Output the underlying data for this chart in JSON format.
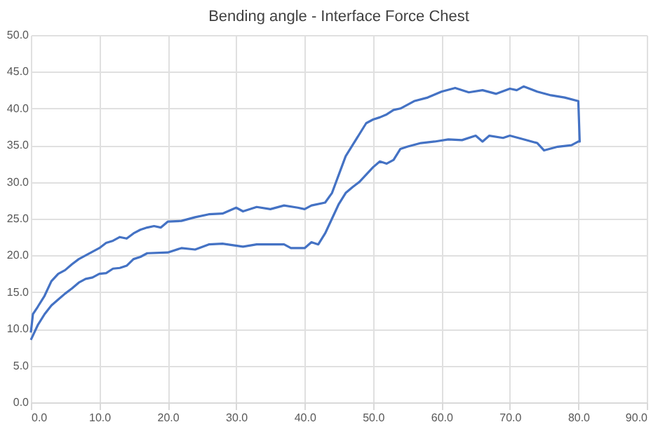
{
  "chart_data": {
    "type": "line",
    "title": "Bending angle - Interface Force Chest",
    "series": [
      {
        "color": "#4472c4",
        "x": [
          0,
          0.3,
          1,
          2,
          3,
          4,
          5,
          6,
          7,
          8,
          9,
          10,
          11,
          12,
          13,
          14,
          15,
          16,
          17,
          18,
          19,
          20,
          22,
          24,
          26,
          28,
          30,
          31,
          33,
          35,
          37,
          39,
          40,
          41,
          43,
          44,
          45,
          46,
          47,
          48,
          49,
          50,
          51,
          52,
          53,
          54,
          56,
          58,
          60,
          62,
          64,
          66,
          68,
          70,
          71,
          72,
          74,
          76,
          78,
          80,
          80.2,
          80,
          79,
          77,
          75,
          74,
          72,
          70,
          69,
          67,
          66,
          65,
          63,
          61,
          59,
          57,
          55,
          54,
          53,
          52,
          51,
          50,
          49,
          48,
          47,
          46,
          45,
          44,
          43,
          42,
          41,
          40,
          38,
          37,
          35,
          33,
          31,
          28,
          26,
          24,
          22,
          20,
          17,
          16,
          15,
          14,
          13,
          12,
          11,
          10,
          9,
          8,
          7,
          6,
          5,
          4,
          3,
          2,
          1,
          0
        ],
        "values": [
          9.5,
          12,
          13,
          14.5,
          16.5,
          17.5,
          18,
          18.8,
          19.5,
          20,
          20.5,
          21,
          21.7,
          22,
          22.5,
          22.3,
          23,
          23.5,
          23.8,
          24,
          23.8,
          24.6,
          24.7,
          25.2,
          25.6,
          25.7,
          26.5,
          26,
          26.6,
          26.3,
          26.8,
          26.5,
          26.3,
          26.8,
          27.2,
          28.5,
          31,
          33.5,
          35,
          36.5,
          38,
          38.5,
          38.8,
          39.2,
          39.8,
          40,
          41,
          41.5,
          42.3,
          42.8,
          42.2,
          42.5,
          42,
          42.7,
          42.5,
          43,
          42.3,
          41.8,
          41.5,
          41,
          35.5,
          35.5,
          35,
          34.8,
          34.3,
          35.3,
          35.8,
          36.3,
          36,
          36.3,
          35.5,
          36.3,
          35.7,
          35.8,
          35.5,
          35.3,
          34.8,
          34.5,
          33,
          32.5,
          32.8,
          32,
          31,
          30,
          29.3,
          28.5,
          27,
          25,
          23,
          21.5,
          21.8,
          21,
          21,
          21.5,
          21.5,
          21.5,
          21.2,
          21.6,
          21.5,
          20.8,
          21,
          20.4,
          20.3,
          19.8,
          19.5,
          18.6,
          18.3,
          18.2,
          17.6,
          17.5,
          17,
          16.8,
          16.3,
          15.5,
          14.8,
          14,
          13.2,
          12,
          10.5,
          8.5
        ]
      }
    ],
    "xlim": [
      0,
      90
    ],
    "ylim": [
      0,
      50
    ],
    "xticks": [
      {
        "value": 0,
        "label": "0.0"
      },
      {
        "value": 10,
        "label": "10.0"
      },
      {
        "value": 20,
        "label": "20.0"
      },
      {
        "value": 30,
        "label": "30.0"
      },
      {
        "value": 40,
        "label": "40.0"
      },
      {
        "value": 50,
        "label": "50.0"
      },
      {
        "value": 60,
        "label": "60.0"
      },
      {
        "value": 70,
        "label": "70.0"
      },
      {
        "value": 80,
        "label": "80.0"
      },
      {
        "value": 90,
        "label": "90.0"
      }
    ],
    "yticks": [
      {
        "value": 0,
        "label": "0.0"
      },
      {
        "value": 5,
        "label": "5.0"
      },
      {
        "value": 10,
        "label": "10.0"
      },
      {
        "value": 15,
        "label": "15.0"
      },
      {
        "value": 20,
        "label": "20.0"
      },
      {
        "value": 25,
        "label": "25.0"
      },
      {
        "value": 30,
        "label": "30.0"
      },
      {
        "value": 35,
        "label": "35.0"
      },
      {
        "value": 40,
        "label": "40.0"
      },
      {
        "value": 45,
        "label": "45.0"
      },
      {
        "value": 50,
        "label": "50.0"
      }
    ],
    "grid": true,
    "line_style": "solid"
  }
}
